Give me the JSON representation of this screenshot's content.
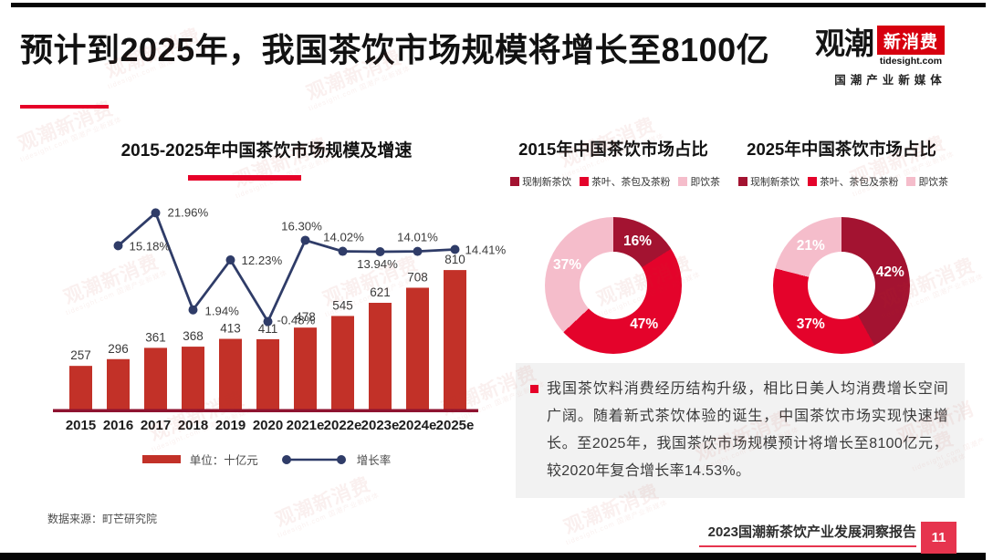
{
  "page": {
    "title": "预计到2025年，我国茶饮市场规模将增长至8100亿",
    "watermark_line1": "观潮新消费",
    "watermark_line2": "tidesight.com 国潮产业新媒体"
  },
  "logo": {
    "brand_black": "观潮",
    "brand_red": "新消费",
    "domain": "tidesight.com",
    "tagline": "国潮产业新媒体"
  },
  "chart_data": [
    {
      "type": "bar",
      "title": "2015-2025年中国茶饮市场规模及增速",
      "categories": [
        "2015",
        "2016",
        "2017",
        "2018",
        "2019",
        "2020",
        "2021e",
        "2022e",
        "2023e",
        "2024e",
        "2025e"
      ],
      "series": [
        {
          "name": "单位：十亿元",
          "type": "bar",
          "values": [
            257,
            296,
            361,
            368,
            413,
            411,
            478,
            545,
            621,
            708,
            810
          ]
        },
        {
          "name": "增长率",
          "type": "line",
          "values": [
            null,
            15.18,
            21.96,
            1.94,
            12.23,
            -0.48,
            16.3,
            14.02,
            13.94,
            14.01,
            14.41
          ]
        }
      ],
      "ylim": [
        0,
        900
      ],
      "y2lim": [
        -5,
        25
      ],
      "grid": false,
      "legend_position": "bottom",
      "bar_color": "#c23128",
      "line_color": "#2f3c68",
      "baseline_color": "#8e1330"
    },
    {
      "type": "pie",
      "donut": true,
      "title": "2015年中国茶饮市场占比",
      "labels": [
        "现制新茶饮",
        "茶叶、茶包及茶粉",
        "即饮茶"
      ],
      "values": [
        16,
        47,
        37
      ],
      "colors": [
        "#a31331",
        "#e4032b",
        "#f5bdcb"
      ],
      "legend_position": "top"
    },
    {
      "type": "pie",
      "donut": true,
      "title": "2025年中国茶饮市场占比",
      "labels": [
        "现制新茶饮",
        "茶叶、茶包及茶粉",
        "即饮茶"
      ],
      "values": [
        42,
        37,
        21
      ],
      "colors": [
        "#a31331",
        "#e4032b",
        "#f5bdcb"
      ],
      "legend_position": "top"
    }
  ],
  "insight": {
    "text": "我国茶饮料消费经历结构升级，相比日美人均消费增长空间广阔。随着新式茶饮体验的诞生，中国茶饮市场实现快速增长。至2025年，我国茶饮市场规模预计将增长至8100亿元，较2020年复合增长率14.53%。"
  },
  "footer": {
    "source": "数据来源：町芒研究院",
    "report_title": "2023国潮新茶饮产业发展洞察报告",
    "page_number": "11"
  },
  "colors": {
    "accent_red": "#e60028",
    "bar_red": "#c23128",
    "line_navy": "#2f3c68",
    "dark_red": "#a31331",
    "mid_red": "#e4032b",
    "pink": "#f5bdcb",
    "baseline_red": "#8e1330",
    "footer_red": "#e6344e"
  }
}
